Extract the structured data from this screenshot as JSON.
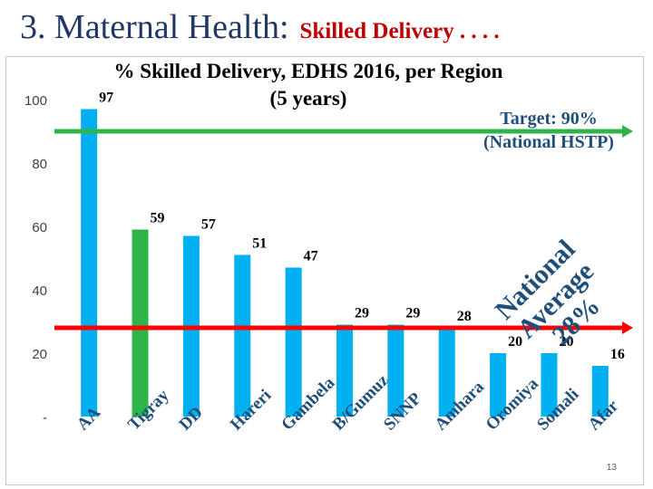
{
  "slide": {
    "title_main": "3. Maternal Health:",
    "title_sub": "Skilled Delivery . . . .",
    "page_number": "13"
  },
  "chart_data": {
    "type": "bar",
    "title": "% Skilled Delivery, EDHS 2016, per Region (5 years)",
    "title_line1": "% Skilled Delivery, EDHS 2016, per Region",
    "title_line2": "(5 years)",
    "categories": [
      "AA",
      "Tigray",
      "DD",
      "Hareri",
      "Gambela",
      "B/Gumuz",
      "SNNP",
      "Amhara",
      "Oromiya",
      "Somali",
      "Afar"
    ],
    "values": [
      97,
      59,
      57,
      51,
      47,
      29,
      29,
      28,
      20,
      20,
      16
    ],
    "bar_colors": [
      "#00b0f0",
      "#2eb54a",
      "#00b0f0",
      "#00b0f0",
      "#00b0f0",
      "#00b0f0",
      "#00b0f0",
      "#00b0f0",
      "#00b0f0",
      "#00b0f0",
      "#00b0f0"
    ],
    "yticks": [
      "-",
      "20",
      "40",
      "60",
      "80",
      "100"
    ],
    "ytick_values": [
      0,
      20,
      40,
      60,
      80,
      100
    ],
    "ylim": [
      0,
      100
    ],
    "grid": false,
    "reference_lines": [
      {
        "value": 90,
        "color": "#2eb54a",
        "label_line1": "Target: 90%",
        "label_line2": "(National HSTP)"
      },
      {
        "value": 28,
        "color": "#ff0000",
        "label_line1": "National",
        "label_line2": "Average 28%"
      }
    ]
  }
}
